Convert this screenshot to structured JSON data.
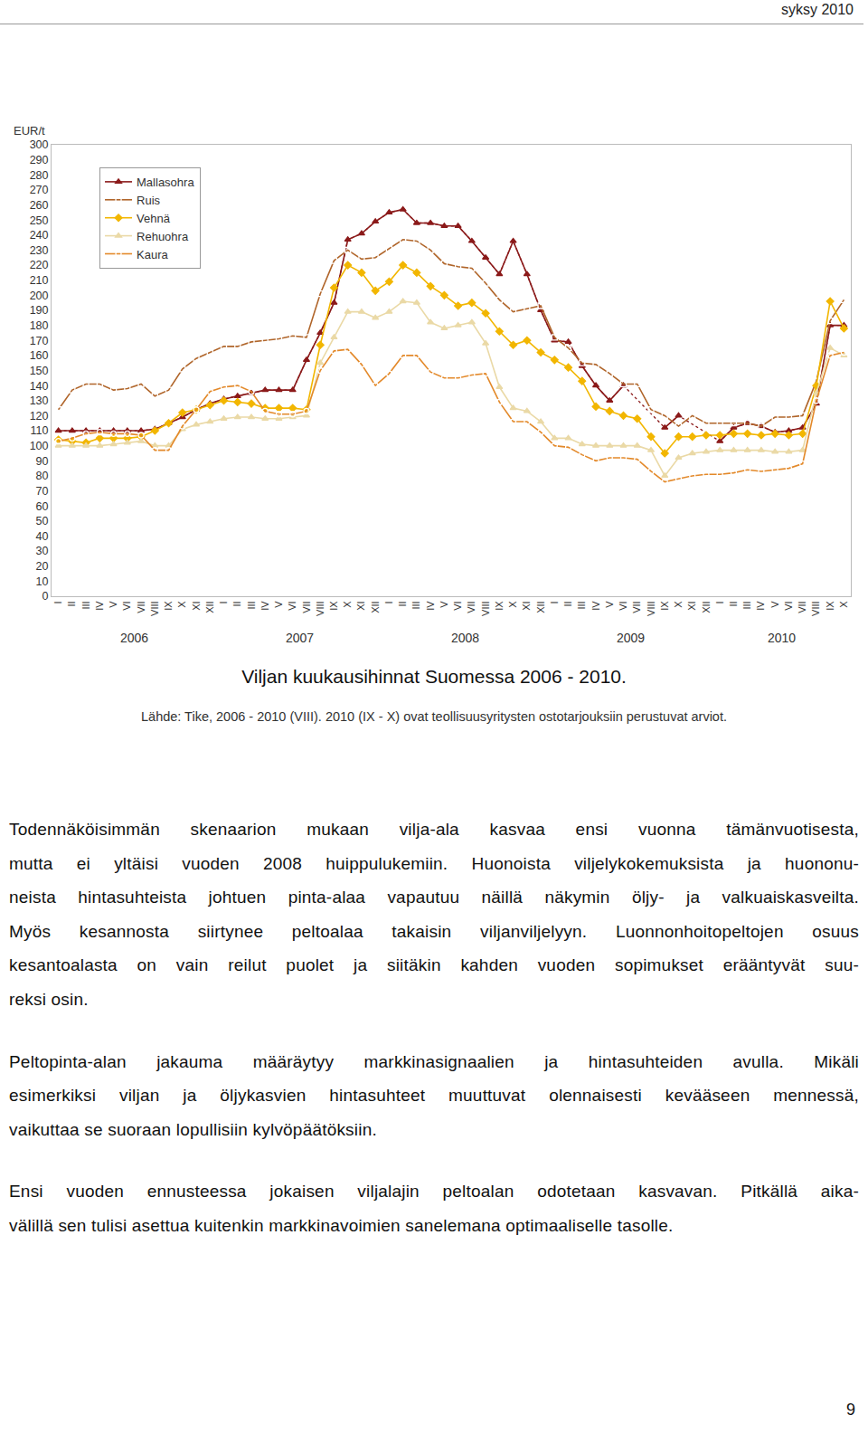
{
  "page": {
    "header": "syksy 2010",
    "caption": "Viljan kuukausihinnat Suomessa 2006 - 2010.",
    "source": "Lähde: Tike, 2006 - 2010 (VIII). 2010 (IX - X) ovat teollisuusyritysten ostotarjouksiin perustuvat arviot.",
    "paragraphs": [
      [
        "Todennäköisimmän skenaarion mukaan vilja-ala kasvaa ensi vuonna tämänvuotisesta,",
        "mutta ei yltäisi vuoden 2008 huippulukemiin. Huonoista viljelykokemuksista ja huononu-",
        "neista hintasuhteista johtuen pinta-alaa vapautuu näillä näkymin öljy- ja valkuaiskasveilta.",
        "Myös kesannosta siirtynee peltoalaa takaisin viljanviljelyyn. Luonnonhoitopeltojen osuus",
        "kesantoalasta on vain reilut puolet ja siitäkin kahden vuoden sopimukset erääntyvät suu-",
        "reksi osin."
      ],
      [
        "Peltopinta-alan jakauma määräytyy markkinasignaalien ja hintasuhteiden avulla. Mikäli",
        "esimerkiksi viljan ja öljykasvien hintasuhteet muuttuvat olennaisesti kevääseen mennessä,",
        "vaikuttaa se suoraan lopullisiin kylvöpäätöksiin."
      ],
      [
        "Ensi vuoden ennusteessa jokaisen viljalajin peltoalan odotetaan kasvavan. Pitkällä aika-",
        "välillä sen tulisi asettua kuitenkin markkinavoimien sanelemana optimaaliselle tasolle."
      ]
    ],
    "page_number": "9"
  },
  "chart_data": {
    "type": "line",
    "ylabel": "EUR/t",
    "categories": [
      "I",
      "II",
      "III",
      "IV",
      "V",
      "VI",
      "VII",
      "VIII",
      "IX",
      "X",
      "XI",
      "XII",
      "I",
      "II",
      "III",
      "IV",
      "V",
      "VI",
      "VII",
      "VIII",
      "IX",
      "X",
      "XI",
      "XII",
      "I",
      "II",
      "III",
      "IV",
      "V",
      "VI",
      "VII",
      "VIII",
      "IX",
      "X",
      "XI",
      "XII",
      "I",
      "II",
      "III",
      "IV",
      "V",
      "VI",
      "VII",
      "VIII",
      "IX",
      "X",
      "XI",
      "XII",
      "I",
      "II",
      "III",
      "IV",
      "V",
      "VI",
      "VII",
      "VIII",
      "IX",
      "X"
    ],
    "years": [
      "2006",
      "2007",
      "2008",
      "2009",
      "2010"
    ],
    "ylim": [
      0,
      300
    ],
    "yticks": [
      0,
      10,
      20,
      30,
      40,
      50,
      60,
      70,
      80,
      90,
      100,
      110,
      120,
      130,
      140,
      150,
      160,
      170,
      180,
      190,
      200,
      210,
      220,
      230,
      240,
      250,
      260,
      270,
      280,
      290,
      300
    ],
    "grid": false,
    "legend": "upper left",
    "series": [
      {
        "name": "Mallasohra",
        "color": "#8b1a1a",
        "marker": "triangle-up",
        "values": [
          110,
          110,
          110,
          110,
          110,
          110,
          110,
          111,
          115,
          119,
          124,
          128,
          131,
          133,
          135,
          137,
          137,
          137,
          157,
          175,
          195,
          237,
          241,
          249,
          255,
          257,
          248,
          248,
          246,
          246,
          236,
          225,
          214,
          236,
          214,
          190,
          170,
          169,
          153,
          140,
          130,
          140,
          null,
          null,
          112,
          120,
          null,
          null,
          103,
          112,
          115,
          113,
          109,
          110,
          112,
          128,
          180,
          180
        ]
      },
      {
        "name": "Ruis",
        "color": "#b0652a",
        "marker": "square-open",
        "values": [
          124,
          137,
          141,
          141,
          137,
          138,
          141,
          133,
          137,
          151,
          158,
          162,
          166,
          166,
          169,
          170,
          171,
          173,
          172,
          201,
          223,
          230,
          224,
          225,
          231,
          237,
          236,
          230,
          221,
          219,
          218,
          208,
          197,
          189,
          191,
          193,
          172,
          165,
          155,
          154,
          148,
          141,
          141,
          124,
          120,
          113,
          120,
          115,
          115,
          115,
          115,
          113,
          119,
          119,
          120,
          143,
          183,
          197
        ]
      },
      {
        "name": "Vehnä",
        "color": "#f2b600",
        "marker": "diamond",
        "values": [
          104,
          103,
          102,
          105,
          105,
          105,
          106,
          110,
          115,
          122,
          124,
          127,
          130,
          129,
          128,
          125,
          125,
          125,
          124,
          167,
          205,
          220,
          215,
          203,
          209,
          220,
          215,
          206,
          200,
          193,
          195,
          188,
          176,
          167,
          170,
          162,
          157,
          152,
          143,
          126,
          123,
          120,
          118,
          106,
          95,
          106,
          106,
          107,
          107,
          108,
          108,
          107,
          108,
          107,
          108,
          140,
          196,
          178
        ]
      },
      {
        "name": "Rehuohra",
        "color": "#ead9a6",
        "marker": "triangle-up",
        "values": [
          100,
          100,
          100,
          100,
          101,
          102,
          103,
          100,
          100,
          111,
          114,
          116,
          118,
          119,
          119,
          118,
          118,
          119,
          120,
          155,
          172,
          189,
          189,
          185,
          189,
          196,
          195,
          182,
          178,
          180,
          182,
          168,
          139,
          125,
          123,
          116,
          105,
          105,
          101,
          100,
          100,
          100,
          100,
          97,
          80,
          92,
          95,
          96,
          97,
          97,
          97,
          97,
          96,
          96,
          97,
          135,
          165,
          160
        ]
      },
      {
        "name": "Kaura",
        "color": "#e3892a",
        "marker": "circle-open",
        "values": [
          103,
          105,
          108,
          109,
          108,
          108,
          107,
          97,
          97,
          113,
          124,
          136,
          139,
          140,
          136,
          123,
          121,
          121,
          123,
          150,
          163,
          164,
          154,
          140,
          148,
          160,
          160,
          149,
          145,
          145,
          147,
          148,
          129,
          116,
          116,
          109,
          100,
          99,
          94,
          90,
          92,
          92,
          91,
          83,
          76,
          78,
          80,
          81,
          81,
          82,
          84,
          83,
          84,
          85,
          88,
          130,
          160,
          162
        ]
      }
    ]
  }
}
